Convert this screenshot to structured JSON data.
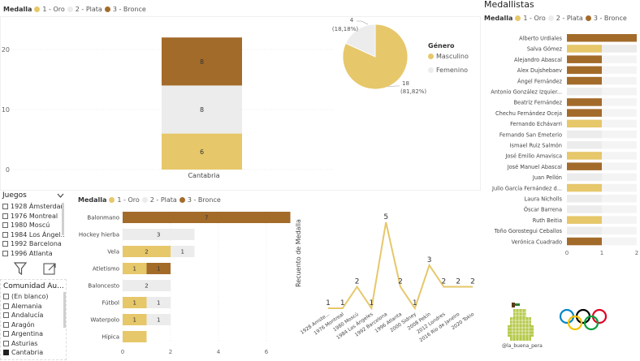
{
  "colors": {
    "oro": "#e6c76a",
    "plata": "#ececec",
    "bronce": "#a36b2a",
    "line": "#e6c76a",
    "pie_oro": "#e6c76a",
    "pie_plata": "#ececec"
  },
  "legend": {
    "title": "Medalla",
    "items": [
      "1 - Oro",
      "2 - Plata",
      "3 - Bronce"
    ]
  },
  "stacked": {
    "category": "Cantabria",
    "y_ticks": [
      "20",
      "10",
      "0"
    ],
    "segments": [
      {
        "name": "1 - Oro",
        "value": 6,
        "label": "6"
      },
      {
        "name": "2 - Plata",
        "value": 8,
        "label": "8"
      },
      {
        "name": "3 - Bronce",
        "value": 8,
        "label": "8"
      }
    ]
  },
  "pie": {
    "legend_title": "Género",
    "entries": [
      "Masculino",
      "Femenino"
    ],
    "slices": [
      {
        "name": "Masculino",
        "value": 18,
        "label": "18",
        "pct": "(81,82%)"
      },
      {
        "name": "Femenino",
        "value": 4,
        "label": "4",
        "pct": "(18,18%)"
      }
    ]
  },
  "medallistas": {
    "title": "Medallistas",
    "x_ticks": [
      "0",
      "1",
      "2"
    ],
    "rows": [
      {
        "name": "Alberto Urdiales",
        "segs": [
          [
            "bronce",
            2
          ]
        ]
      },
      {
        "name": "Salva Gómez",
        "segs": [
          [
            "oro",
            1
          ],
          [
            "plata",
            1
          ]
        ]
      },
      {
        "name": "Alejandro Abascal",
        "segs": [
          [
            "bronce",
            1
          ]
        ]
      },
      {
        "name": "Alex Dujshebaev",
        "segs": [
          [
            "bronce",
            1
          ]
        ]
      },
      {
        "name": "Ángel Fernández",
        "segs": [
          [
            "bronce",
            1
          ]
        ]
      },
      {
        "name": "Antonio González Izquier...",
        "segs": [
          [
            "plata",
            1
          ]
        ]
      },
      {
        "name": "Beatriz Fernández",
        "segs": [
          [
            "bronce",
            1
          ]
        ]
      },
      {
        "name": "Chechu Fernández Oceja",
        "segs": [
          [
            "bronce",
            1
          ]
        ]
      },
      {
        "name": "Fernando Echávarri",
        "segs": [
          [
            "oro",
            1
          ]
        ]
      },
      {
        "name": "Fernando San Emeterio",
        "segs": [
          [
            "plata",
            1
          ]
        ]
      },
      {
        "name": "Ismael Ruiz Salmón",
        "segs": [
          [
            "plata",
            1
          ]
        ]
      },
      {
        "name": "José Emilio Amavisca",
        "segs": [
          [
            "oro",
            1
          ]
        ]
      },
      {
        "name": "José Manuel Abascal",
        "segs": [
          [
            "bronce",
            1
          ]
        ]
      },
      {
        "name": "Juan Pellón",
        "segs": [
          [
            "plata",
            1
          ]
        ]
      },
      {
        "name": "Julio García Fernández d...",
        "segs": [
          [
            "oro",
            1
          ]
        ]
      },
      {
        "name": "Laura Nicholls",
        "segs": [
          [
            "plata",
            1
          ]
        ]
      },
      {
        "name": "Óscar Barrena",
        "segs": [
          [
            "plata",
            1
          ]
        ]
      },
      {
        "name": "Ruth Beitia",
        "segs": [
          [
            "oro",
            1
          ]
        ]
      },
      {
        "name": "Toño Gorostegui Ceballos",
        "segs": [
          [
            "plata",
            1
          ]
        ]
      },
      {
        "name": "Verónica Cuadrado",
        "segs": [
          [
            "bronce",
            1
          ]
        ]
      }
    ]
  },
  "deportes": {
    "x_ticks": [
      "0",
      "2",
      "4",
      "6"
    ],
    "rows": [
      {
        "name": "Balonmano",
        "segs": [
          [
            "bronce",
            7,
            "7"
          ]
        ]
      },
      {
        "name": "Hockey hierba",
        "segs": [
          [
            "plata",
            3,
            "3"
          ]
        ]
      },
      {
        "name": "Vela",
        "segs": [
          [
            "oro",
            2,
            "2"
          ],
          [
            "plata",
            1,
            "1"
          ]
        ]
      },
      {
        "name": "Atletismo",
        "segs": [
          [
            "oro",
            1,
            "1"
          ],
          [
            "bronce",
            1,
            "1"
          ]
        ]
      },
      {
        "name": "Baloncesto",
        "segs": [
          [
            "plata",
            2,
            "2"
          ]
        ]
      },
      {
        "name": "Fútbol",
        "segs": [
          [
            "oro",
            1,
            "1"
          ],
          [
            "plata",
            1,
            "1"
          ]
        ]
      },
      {
        "name": "Waterpolo",
        "segs": [
          [
            "oro",
            1,
            "1"
          ],
          [
            "plata",
            1,
            "1"
          ]
        ]
      },
      {
        "name": "Hípica",
        "segs": [
          [
            "oro",
            1,
            ""
          ]
        ]
      }
    ]
  },
  "chart_data": [
    {
      "type": "bar",
      "title": "",
      "categories": [
        "Cantabria"
      ],
      "series": [
        {
          "name": "1 - Oro",
          "values": [
            6
          ]
        },
        {
          "name": "2 - Plata",
          "values": [
            8
          ]
        },
        {
          "name": "3 - Bronce",
          "values": [
            8
          ]
        }
      ],
      "ylim": [
        0,
        22
      ]
    },
    {
      "type": "pie",
      "title": "Género",
      "categories": [
        "Masculino",
        "Femenino"
      ],
      "values": [
        18,
        4
      ]
    },
    {
      "type": "bar",
      "title": "Medallistas",
      "categories": [
        "Alberto Urdiales",
        "Salva Gómez",
        "Alejandro Abascal",
        "Alex Dujshebaev",
        "Ángel Fernández",
        "Antonio González Izquier...",
        "Beatriz Fernández",
        "Chechu Fernández Oceja",
        "Fernando Echávarri",
        "Fernando San Emeterio",
        "Ismael Ruiz Salmón",
        "José Emilio Amavisca",
        "José Manuel Abascal",
        "Juan Pellón",
        "Julio García Fernández d...",
        "Laura Nicholls",
        "Óscar Barrena",
        "Ruth Beitia",
        "Toño Gorostegui Ceballos",
        "Verónica Cuadrado"
      ],
      "series": [
        {
          "name": "1 - Oro",
          "values": [
            0,
            1,
            0,
            0,
            0,
            0,
            0,
            0,
            1,
            0,
            0,
            1,
            0,
            0,
            1,
            0,
            0,
            1,
            0,
            0
          ]
        },
        {
          "name": "2 - Plata",
          "values": [
            0,
            1,
            0,
            0,
            0,
            1,
            0,
            0,
            0,
            1,
            1,
            0,
            0,
            1,
            0,
            1,
            1,
            0,
            1,
            0
          ]
        },
        {
          "name": "3 - Bronce",
          "values": [
            2,
            0,
            1,
            1,
            1,
            0,
            1,
            1,
            0,
            0,
            0,
            0,
            1,
            0,
            0,
            0,
            0,
            0,
            0,
            1
          ]
        }
      ],
      "xlim": [
        0,
        2
      ]
    },
    {
      "type": "bar",
      "title": "",
      "categories": [
        "Balonmano",
        "Hockey hierba",
        "Vela",
        "Atletismo",
        "Baloncesto",
        "Fútbol",
        "Waterpolo",
        "Hípica"
      ],
      "series": [
        {
          "name": "1 - Oro",
          "values": [
            0,
            0,
            2,
            1,
            0,
            1,
            1,
            1
          ]
        },
        {
          "name": "2 - Plata",
          "values": [
            0,
            3,
            1,
            0,
            2,
            1,
            1,
            0
          ]
        },
        {
          "name": "3 - Bronce",
          "values": [
            7,
            0,
            0,
            1,
            0,
            0,
            0,
            0
          ]
        }
      ],
      "xlim": [
        0,
        7
      ]
    },
    {
      "type": "line",
      "title": "",
      "ylabel": "Recuento de Medalla",
      "x": [
        "1928 Amste...",
        "1976 Montreal",
        "1980 Moscú",
        "1984 Los Ángeles",
        "1992 Barcelona",
        "1996 Atlanta",
        "2000 Sidney",
        "2008 Pekín",
        "2012 Londres",
        "2016 Río de Janeiro",
        "2020 Tokio"
      ],
      "y": [
        1,
        1,
        2,
        1,
        5,
        2,
        1,
        3,
        2,
        2,
        2
      ]
    }
  ],
  "line": {
    "ylabel": "Recuento de Medalla",
    "x": [
      "1928 Amste...",
      "1976 Montreal",
      "1980 Moscú",
      "1984 Los Ángeles",
      "1992 Barcelona",
      "1996 Atlanta",
      "2000 Sidney",
      "2008 Pekín",
      "2012 Londres",
      "2016 Río de Janeiro",
      "2020 Tokio"
    ],
    "y": [
      1,
      1,
      2,
      1,
      5,
      2,
      1,
      3,
      2,
      2,
      2
    ]
  },
  "slicer_juegos": {
    "title": "Juegos",
    "items": [
      "1928 Ámsterdam",
      "1976 Montreal",
      "1980 Moscú",
      "1984 Los Ángel...",
      "1992 Barcelona",
      "1996 Atlanta"
    ]
  },
  "slicer_comunidad": {
    "title": "Comunidad Au...",
    "items": [
      "(En blanco)",
      "Alemania",
      "Andalucía",
      "Aragón",
      "Argentina",
      "Asturias",
      "Cantabria"
    ],
    "selected": "Cantabria"
  },
  "logo": {
    "caption": "@la_buena_pera"
  }
}
